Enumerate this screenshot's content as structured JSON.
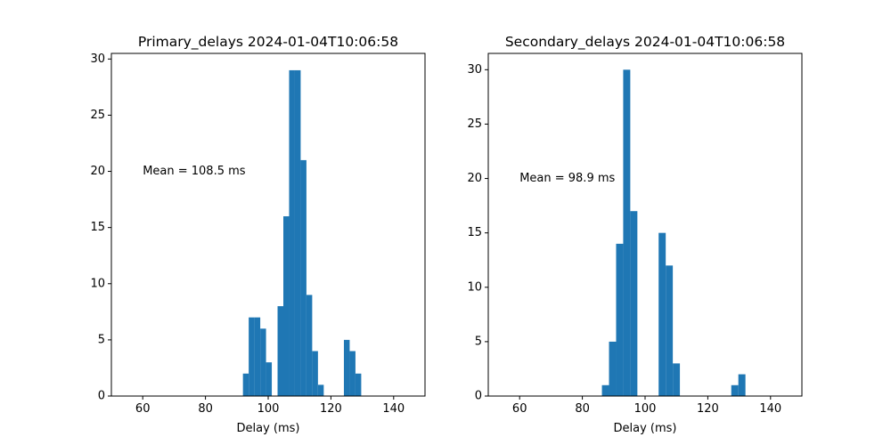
{
  "chart_data": [
    {
      "type": "bar",
      "title": "Primary_delays 2024-01-04T10:06:58",
      "xlabel": "Delay (ms)",
      "ylabel": "",
      "xlim": [
        50,
        150
      ],
      "ylim": [
        0,
        30.5
      ],
      "xticks": [
        60,
        80,
        100,
        120,
        140
      ],
      "yticks": [
        0,
        5,
        10,
        15,
        20,
        25,
        30
      ],
      "bin_width": 1.84,
      "bars": [
        {
          "x": 91.95,
          "y": 2
        },
        {
          "x": 93.79,
          "y": 7
        },
        {
          "x": 95.63,
          "y": 7
        },
        {
          "x": 97.47,
          "y": 6
        },
        {
          "x": 99.31,
          "y": 3
        },
        {
          "x": 102.99,
          "y": 8
        },
        {
          "x": 104.83,
          "y": 16
        },
        {
          "x": 106.67,
          "y": 29
        },
        {
          "x": 108.51,
          "y": 29
        },
        {
          "x": 110.35,
          "y": 21
        },
        {
          "x": 112.19,
          "y": 9
        },
        {
          "x": 114.03,
          "y": 4
        },
        {
          "x": 115.87,
          "y": 1
        },
        {
          "x": 124.14,
          "y": 5
        },
        {
          "x": 125.98,
          "y": 4
        },
        {
          "x": 127.82,
          "y": 2
        }
      ],
      "annotation": {
        "text": "Mean = 108.5 ms",
        "x": 60,
        "y": 20
      },
      "bar_color": "#1f77b4",
      "grid": false
    },
    {
      "type": "bar",
      "title": "Secondary_delays 2024-01-04T10:06:58",
      "xlabel": "Delay (ms)",
      "ylabel": "",
      "xlim": [
        50,
        150
      ],
      "ylim": [
        0,
        31.5
      ],
      "xticks": [
        60,
        80,
        100,
        120,
        140
      ],
      "yticks": [
        0,
        5,
        10,
        15,
        20,
        25,
        30
      ],
      "bin_width": 2.26,
      "bars": [
        {
          "x": 86.24,
          "y": 1
        },
        {
          "x": 88.5,
          "y": 5
        },
        {
          "x": 90.76,
          "y": 14
        },
        {
          "x": 93.02,
          "y": 30
        },
        {
          "x": 95.28,
          "y": 17
        },
        {
          "x": 104.32,
          "y": 15
        },
        {
          "x": 106.58,
          "y": 12
        },
        {
          "x": 108.84,
          "y": 3
        },
        {
          "x": 127.48,
          "y": 1
        },
        {
          "x": 129.74,
          "y": 2
        }
      ],
      "annotation": {
        "text": "Mean = 98.9 ms",
        "x": 60,
        "y": 20
      },
      "bar_color": "#1f77b4",
      "grid": false
    }
  ]
}
